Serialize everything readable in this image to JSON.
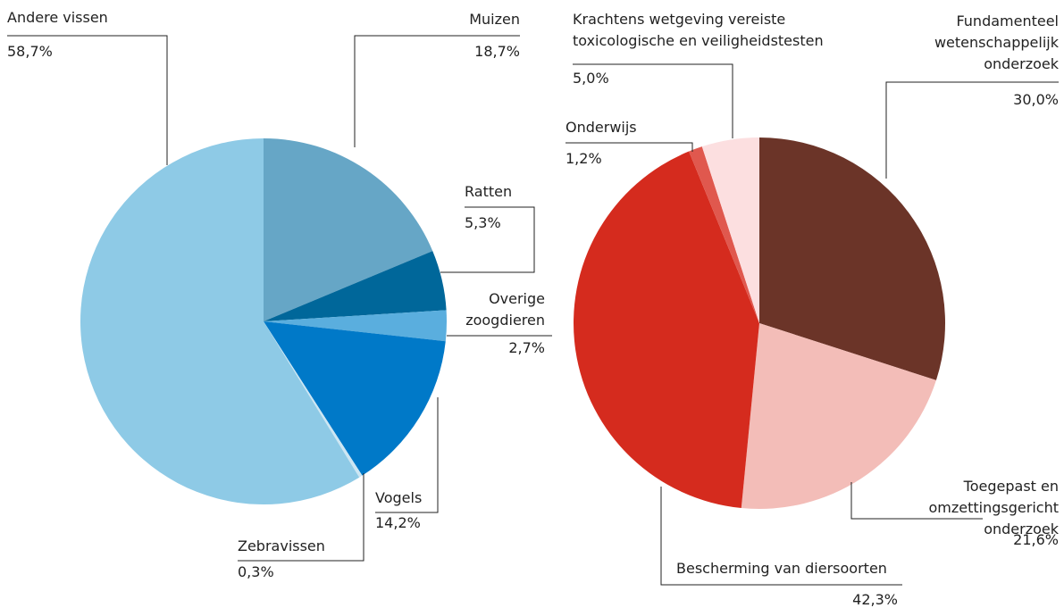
{
  "chart_data": [
    {
      "type": "pie",
      "categories": [
        "Muizen",
        "Ratten",
        "Overige zoogdieren",
        "Vogels",
        "Zebravissen",
        "Andere vissen"
      ],
      "values": [
        18.7,
        5.3,
        2.7,
        14.2,
        0.3,
        58.7
      ],
      "value_labels": [
        "18,7%",
        "5,3%",
        "2,7%",
        "14,2%",
        "0,3%",
        "58,7%"
      ],
      "colors": [
        "#66a6c6",
        "#00679a",
        "#5aaede",
        "#0079c8",
        "#cde6f3",
        "#8ecae6"
      ]
    },
    {
      "type": "pie",
      "categories": [
        "Fundamenteel wetenschappelijk onderzoek",
        "Toegepast en omzettingsgericht onderzoek",
        "Bescherming van diersoorten",
        "Onderwijs",
        "Krachtens wetgeving vereiste toxicologische en veiligheidstesten"
      ],
      "values": [
        30.0,
        21.6,
        42.3,
        1.2,
        5.0
      ],
      "value_labels": [
        "30,0%",
        "21,6%",
        "42,3%",
        "1,2%",
        "5,0%"
      ],
      "colors": [
        "#6b3428",
        "#f3bdb8",
        "#d52b1e",
        "#e0584e",
        "#fcdfe0"
      ]
    }
  ]
}
